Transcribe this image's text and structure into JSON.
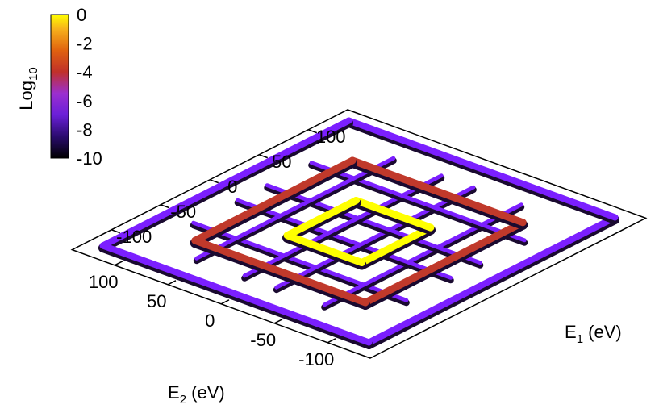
{
  "chart_data": {
    "type": "surface3d",
    "x_axis": {
      "label_main": "E",
      "label_sub": "1",
      "label_unit": " (eV)",
      "ticks": [
        "-100",
        "-50",
        "0",
        "50",
        "100"
      ],
      "range": [
        -140,
        140
      ]
    },
    "y_axis": {
      "label_main": "E",
      "label_sub": "2",
      "label_unit": " (eV)",
      "ticks": [
        "-100",
        "-50",
        "0",
        "50",
        "100"
      ],
      "range": [
        -140,
        140
      ]
    },
    "colorbar": {
      "label_main": "Log",
      "label_sub": "10",
      "ticks": [
        "0",
        "-2",
        "-4",
        "-6",
        "-8",
        "-10"
      ],
      "range": [
        -10,
        0
      ],
      "palette": [
        "#000000",
        "#3b0a8c",
        "#7b1fff",
        "#9a3bd6",
        "#c0392b",
        "#e0620f",
        "#f7a51b",
        "#ffff00"
      ]
    },
    "ridges": [
      {
        "name": "outer-frame",
        "half_width_eV": 125,
        "log10": -7.5
      },
      {
        "name": "middle-frame",
        "half_width_eV": 80,
        "log10": -4.0
      },
      {
        "name": "inner-frame",
        "half_width_eV": 35,
        "log10": -0.5
      },
      {
        "name": "grid-lines",
        "positions_eV": [
          -60,
          -15,
          15,
          60
        ],
        "log10": -7.5
      }
    ],
    "grid": false,
    "colorbar_position": "top-left"
  }
}
